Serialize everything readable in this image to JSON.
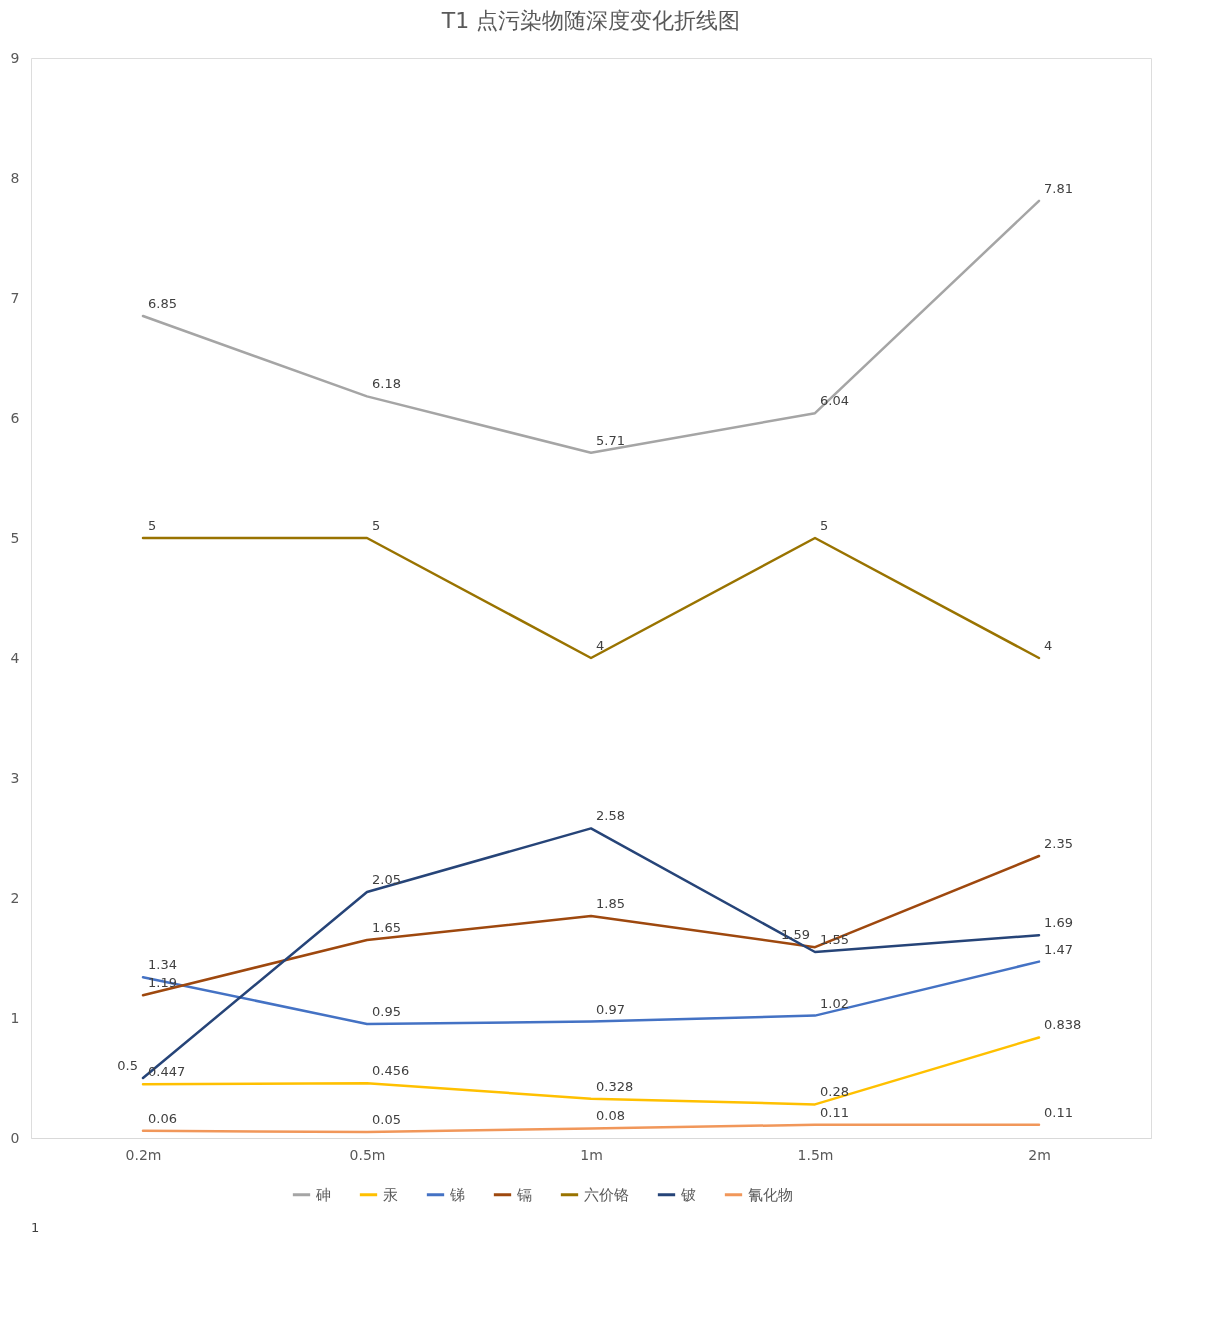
{
  "chart_data": {
    "type": "line",
    "title": "T1 点污染物随深度变化折线图",
    "categories": [
      "0.2m",
      "0.5m",
      "1m",
      "1.5m",
      "2m"
    ],
    "series": [
      {
        "name": "砷",
        "color": "#a5a5a5",
        "values": [
          6.85,
          6.18,
          5.71,
          6.04,
          7.81
        ]
      },
      {
        "name": "汞",
        "color": "#ffc000",
        "values": [
          0.447,
          0.456,
          0.328,
          0.28,
          0.838
        ]
      },
      {
        "name": "锑",
        "color": "#4472c4",
        "values": [
          1.34,
          0.95,
          0.97,
          1.02,
          1.47
        ]
      },
      {
        "name": "镉",
        "color": "#9e480e",
        "values": [
          1.19,
          1.65,
          1.85,
          1.59,
          2.35
        ]
      },
      {
        "name": "六价铬",
        "color": "#997300",
        "values": [
          5,
          5,
          4,
          5,
          4
        ]
      },
      {
        "name": "铍",
        "color": "#264478",
        "values": [
          0.5,
          2.05,
          2.58,
          1.55,
          1.69
        ]
      },
      {
        "name": "氰化物",
        "color": "#f1975a",
        "values": [
          0.06,
          0.05,
          0.08,
          0.11,
          0.11
        ]
      }
    ],
    "ylim": [
      0,
      9
    ],
    "yticks": [
      0,
      1,
      2,
      3,
      4,
      5,
      6,
      7,
      8,
      9
    ],
    "grid": false,
    "legend": "bottom",
    "data_labels": true,
    "annotations": [
      "1"
    ]
  }
}
